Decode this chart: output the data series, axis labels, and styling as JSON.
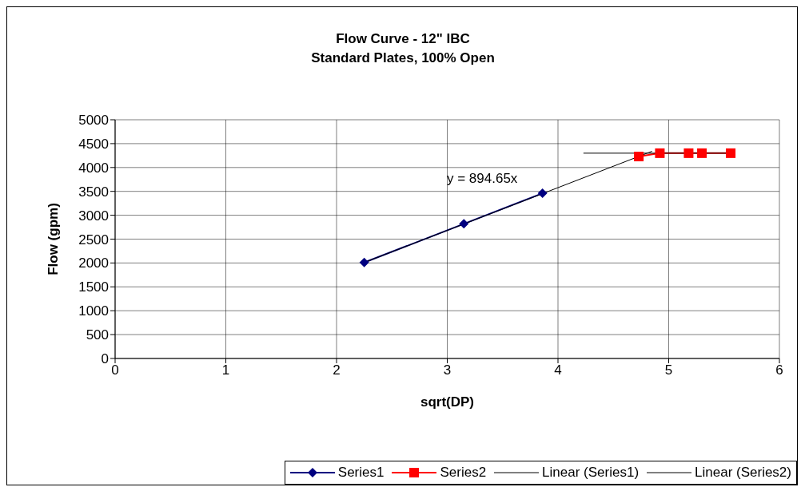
{
  "chart_data": {
    "type": "line",
    "title": "Flow Curve - 12\" IBC",
    "subtitle": "Standard Plates, 100% Open",
    "xlabel": "sqrt(DP)",
    "ylabel": "Flow (gpm)",
    "xlim": [
      0,
      6
    ],
    "xticks": [
      0,
      1,
      2,
      3,
      4,
      5,
      6
    ],
    "ylim": [
      0,
      5000
    ],
    "yticks": [
      0,
      500,
      1000,
      1500,
      2000,
      2500,
      3000,
      3500,
      4000,
      4500,
      5000
    ],
    "grid": true,
    "legend": "bottom right",
    "line_style": "solid",
    "annotations": [
      "y = 894.65x"
    ],
    "series": [
      {
        "name": "Series1",
        "color": "#000080",
        "marker": "diamond",
        "x": [
          2.25,
          3.15,
          3.86
        ],
        "values": [
          2010,
          2820,
          3460
        ]
      },
      {
        "name": "Series2",
        "color": "#ff0000",
        "marker": "square",
        "x": [
          4.73,
          4.92,
          5.18,
          5.3,
          5.56
        ],
        "values": [
          4230,
          4300,
          4300,
          4300,
          4300
        ]
      },
      {
        "name": "Linear (Series1)",
        "color": "#000000",
        "marker": "none",
        "x": [
          2.25,
          4.85
        ],
        "values": [
          2010,
          4340
        ]
      },
      {
        "name": "Linear (Series2)",
        "color": "#000000",
        "marker": "none",
        "x": [
          4.23,
          5.56
        ],
        "values": [
          4300,
          4300
        ]
      }
    ]
  }
}
